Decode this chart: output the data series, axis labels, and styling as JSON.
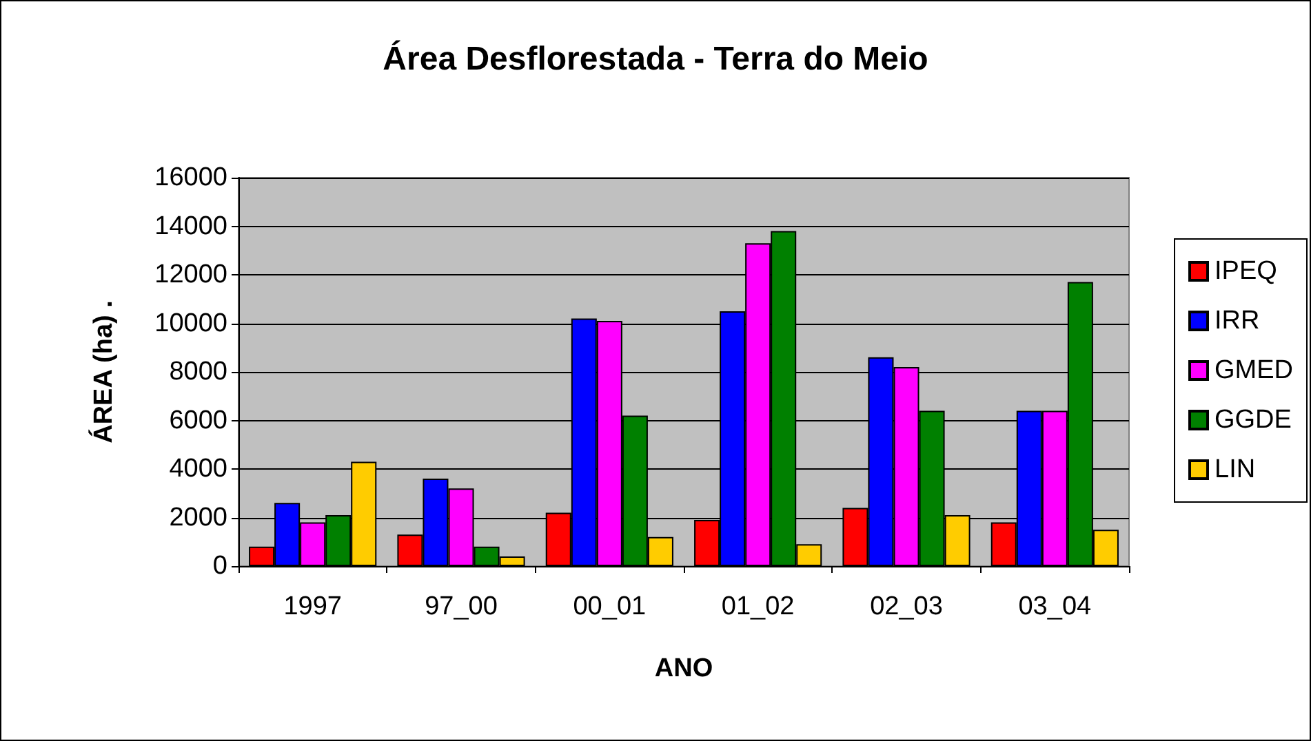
{
  "chart_data": {
    "type": "bar",
    "title": "Área Desflorestada - Terra do Meio",
    "xlabel": "ANO",
    "ylabel": "ÁREA (ha) .",
    "categories": [
      "1997",
      "97_00",
      "00_01",
      "01_02",
      "02_03",
      "03_04"
    ],
    "series": [
      {
        "name": "IPEQ",
        "color": "#ff0000",
        "values": [
          800,
          1300,
          2200,
          1900,
          2400,
          1800
        ]
      },
      {
        "name": "IRR",
        "color": "#0000ff",
        "values": [
          2600,
          3600,
          10200,
          10500,
          8600,
          6400
        ]
      },
      {
        "name": "GMED",
        "color": "#ff00ff",
        "values": [
          1800,
          3200,
          10100,
          13300,
          8200,
          6400
        ]
      },
      {
        "name": "GGDE",
        "color": "#008000",
        "values": [
          2100,
          800,
          6200,
          13800,
          6400,
          11700
        ]
      },
      {
        "name": "LIN",
        "color": "#ffcc00",
        "values": [
          4300,
          400,
          1200,
          900,
          2100,
          1500
        ]
      }
    ],
    "ylim": [
      0,
      16000
    ],
    "yticks": [
      0,
      2000,
      4000,
      6000,
      8000,
      10000,
      12000,
      14000,
      16000
    ],
    "grid": "y",
    "legend": "right"
  }
}
